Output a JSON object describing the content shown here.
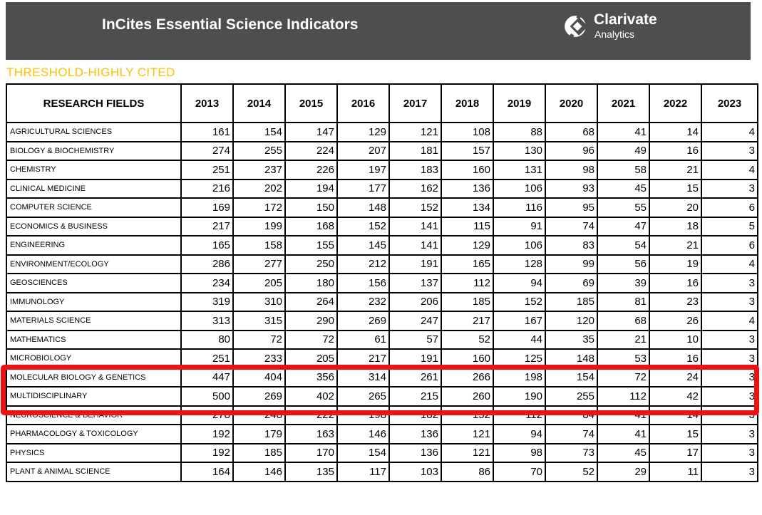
{
  "header": {
    "title": "InCites Essential Science Indicators",
    "logo": {
      "name": "Clarivate",
      "subtitle": "Analytics"
    }
  },
  "section": {
    "title": "THRESHOLD-HIGHLY CITED"
  },
  "colors": {
    "header_bar": "#4E4E4E",
    "section_title": "#FFC000",
    "highlight_box": "#EE1111",
    "table_border": "#000000"
  },
  "table": {
    "field_column_header": "RESEARCH FIELDS",
    "years": [
      "2013",
      "2014",
      "2015",
      "2016",
      "2017",
      "2018",
      "2019",
      "2020",
      "2021",
      "2022",
      "2023"
    ],
    "rows": [
      {
        "field": "AGRICULTURAL SCIENCES",
        "values": [
          161,
          154,
          147,
          129,
          121,
          108,
          88,
          68,
          41,
          14,
          4
        ]
      },
      {
        "field": "BIOLOGY & BIOCHEMISTRY",
        "values": [
          274,
          255,
          224,
          207,
          181,
          157,
          130,
          96,
          49,
          16,
          3
        ]
      },
      {
        "field": "CHEMISTRY",
        "values": [
          251,
          237,
          226,
          197,
          183,
          160,
          131,
          98,
          58,
          21,
          4
        ]
      },
      {
        "field": "CLINICAL MEDICINE",
        "values": [
          216,
          202,
          194,
          177,
          162,
          136,
          106,
          93,
          45,
          15,
          3
        ]
      },
      {
        "field": "COMPUTER SCIENCE",
        "values": [
          169,
          172,
          150,
          148,
          152,
          134,
          116,
          95,
          55,
          20,
          6
        ]
      },
      {
        "field": "ECONOMICS & BUSINESS",
        "values": [
          217,
          199,
          168,
          152,
          141,
          115,
          91,
          74,
          47,
          18,
          5
        ]
      },
      {
        "field": "ENGINEERING",
        "values": [
          165,
          158,
          155,
          145,
          141,
          129,
          106,
          83,
          54,
          21,
          6
        ]
      },
      {
        "field": "ENVIRONMENT/ECOLOGY",
        "values": [
          286,
          277,
          250,
          212,
          191,
          165,
          128,
          99,
          56,
          19,
          4
        ]
      },
      {
        "field": "GEOSCIENCES",
        "values": [
          234,
          205,
          180,
          156,
          137,
          112,
          94,
          69,
          39,
          16,
          3
        ]
      },
      {
        "field": "IMMUNOLOGY",
        "values": [
          319,
          310,
          264,
          232,
          206,
          185,
          152,
          185,
          81,
          23,
          3
        ]
      },
      {
        "field": "MATERIALS SCIENCE",
        "values": [
          313,
          315,
          290,
          269,
          247,
          217,
          167,
          120,
          68,
          26,
          4
        ]
      },
      {
        "field": "MATHEMATICS",
        "values": [
          80,
          72,
          72,
          61,
          57,
          52,
          44,
          35,
          21,
          10,
          3
        ]
      },
      {
        "field": "MICROBIOLOGY",
        "values": [
          251,
          233,
          205,
          217,
          191,
          160,
          125,
          148,
          53,
          16,
          3
        ]
      },
      {
        "field": "MOLECULAR BIOLOGY & GENETICS",
        "values": [
          447,
          404,
          356,
          314,
          261,
          266,
          198,
          154,
          72,
          24,
          3
        ]
      },
      {
        "field": "MULTIDISCIPLINARY",
        "values": [
          500,
          269,
          402,
          265,
          215,
          260,
          190,
          255,
          112,
          42,
          3
        ]
      },
      {
        "field": "NEUROSCIENCE & BEHAVIOR",
        "values": [
          278,
          248,
          222,
          198,
          182,
          152,
          112,
          84,
          41,
          14,
          3
        ]
      },
      {
        "field": "PHARMACOLOGY & TOXICOLOGY",
        "values": [
          192,
          179,
          163,
          146,
          136,
          121,
          94,
          74,
          41,
          15,
          3
        ]
      },
      {
        "field": "PHYSICS",
        "values": [
          192,
          185,
          170,
          154,
          136,
          121,
          98,
          73,
          45,
          17,
          3
        ]
      },
      {
        "field": "PLANT & ANIMAL SCIENCE",
        "values": [
          164,
          146,
          135,
          117,
          103,
          86,
          70,
          52,
          29,
          11,
          3
        ]
      }
    ],
    "highlighted_rows": [
      "MICROBIOLOGY",
      "MOLECULAR BIOLOGY & GENETICS"
    ]
  }
}
